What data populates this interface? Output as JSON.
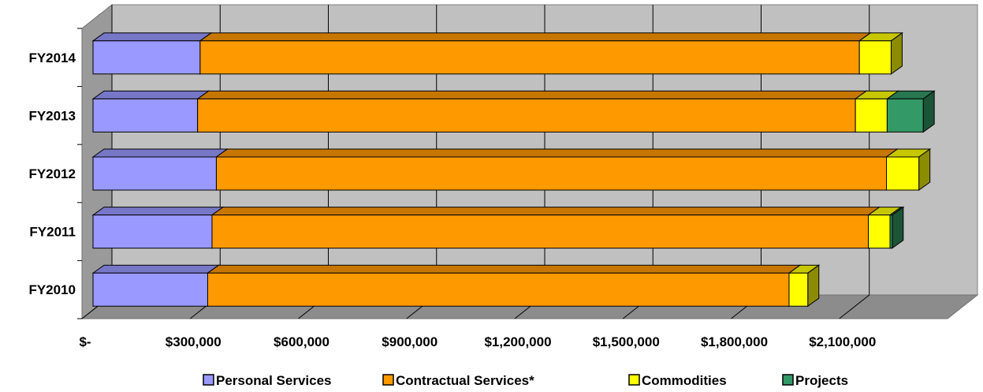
{
  "chart_data": {
    "type": "bar",
    "orientation": "horizontal",
    "stacked": true,
    "three_d": true,
    "categories": [
      "FY2010",
      "FY2011",
      "FY2012",
      "FY2013",
      "FY2014"
    ],
    "series": [
      {
        "name": "Personal Services",
        "color": "#9999FF",
        "values": [
          318000,
          330000,
          342000,
          290000,
          297000
        ]
      },
      {
        "name": "Contractual Services*",
        "color": "#FF9900",
        "values": [
          1612000,
          1820000,
          1858000,
          1824000,
          1828000
        ]
      },
      {
        "name": "Commodities",
        "color": "#FFFF00",
        "values": [
          52000,
          60000,
          90000,
          88000,
          88000
        ]
      },
      {
        "name": "Projects",
        "color": "#339966",
        "values": [
          0,
          6000,
          0,
          100000,
          0
        ]
      }
    ],
    "xticks": [
      "$-",
      "$300,000",
      "$600,000",
      "$900,000",
      "$1,200,000",
      "$1,500,000",
      "$1,800,000",
      "$2,100,000"
    ],
    "xlim": [
      0,
      2400000
    ],
    "grid": true,
    "legend_position": "bottom"
  }
}
